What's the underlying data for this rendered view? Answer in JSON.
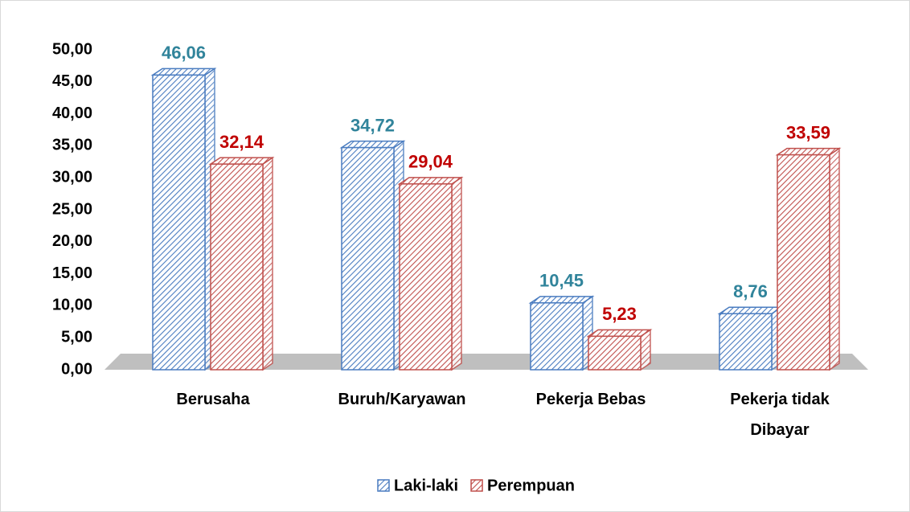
{
  "chart_data": {
    "type": "bar",
    "categories": [
      "Berusaha",
      "Buruh/Karyawan",
      "Pekerja Bebas",
      "Pekerja tidak Dibayar"
    ],
    "series": [
      {
        "name": "Laki-laki",
        "color": "#4a7cc0",
        "label_color": "#31849b",
        "values": [
          46.06,
          34.72,
          10.45,
          8.76
        ],
        "value_labels": [
          "46,06",
          "34,72",
          "10,45",
          "8,76"
        ]
      },
      {
        "name": "Perempuan",
        "color": "#c0504d",
        "label_color": "#c00000",
        "values": [
          32.14,
          29.04,
          5.23,
          33.59
        ],
        "value_labels": [
          "32,14",
          "29,04",
          "5,23",
          "33,59"
        ]
      }
    ],
    "ylim": [
      0,
      50
    ],
    "yticks": [
      {
        "value": 0,
        "label": "0,00"
      },
      {
        "value": 5,
        "label": "5,00"
      },
      {
        "value": 10,
        "label": "10,00"
      },
      {
        "value": 15,
        "label": "15,00"
      },
      {
        "value": 20,
        "label": "20,00"
      },
      {
        "value": 25,
        "label": "25,00"
      },
      {
        "value": 30,
        "label": "30,00"
      },
      {
        "value": 35,
        "label": "35,00"
      },
      {
        "value": 40,
        "label": "40,00"
      },
      {
        "value": 45,
        "label": "45,00"
      },
      {
        "value": 50,
        "label": "50,00"
      }
    ],
    "legend": "bottom"
  }
}
